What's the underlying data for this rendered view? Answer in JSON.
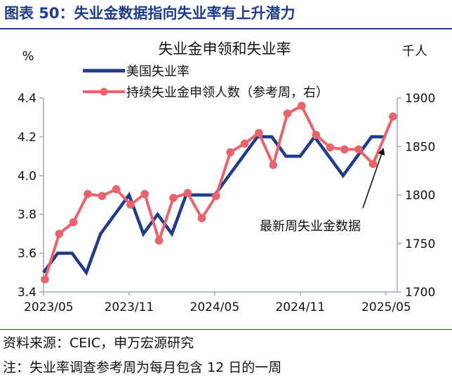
{
  "header": {
    "title": "图表 50：失业金数据指向失业率有上升潜力"
  },
  "footer": {
    "source": "资料来源：CEIC，申万宏源研究",
    "note": "注：失业率调查参考周为每月包含 12 日的一周"
  },
  "colors": {
    "rate_line": "#1f3b8c",
    "claims_line": "#e8636b",
    "accent": "#1f3b8c",
    "axis": "#9aa7c2"
  },
  "chart_data": {
    "type": "line",
    "title": "失业金申领和失业率",
    "left_unit": "%",
    "right_unit": "千人",
    "x_tick_labels": [
      "2023/05",
      "2023/11",
      "2024/05",
      "2024/11",
      "2025/05"
    ],
    "x_tick_indices": [
      0,
      6,
      12,
      18,
      24
    ],
    "left_axis": {
      "min": 3.4,
      "max": 4.4,
      "ticks": [
        "3.4",
        "3.6",
        "3.8",
        "4.0",
        "4.2",
        "4.4"
      ]
    },
    "right_axis": {
      "min": 1700,
      "max": 1900,
      "ticks": [
        "1700",
        "1750",
        "1800",
        "1850",
        "1900"
      ]
    },
    "series": [
      {
        "name": "美国失业率",
        "axis": "left",
        "marker": false,
        "x": [
          0,
          1,
          2,
          3,
          4,
          5,
          6,
          7,
          8,
          9,
          10,
          11,
          12,
          13,
          14,
          15,
          16,
          17,
          18,
          19,
          20,
          21,
          22,
          23,
          24
        ],
        "values": [
          3.5,
          3.6,
          3.6,
          3.5,
          3.7,
          3.8,
          3.9,
          3.7,
          3.8,
          3.7,
          3.9,
          3.9,
          3.9,
          4.0,
          4.1,
          4.2,
          4.2,
          4.1,
          4.1,
          4.2,
          4.1,
          4.0,
          4.1,
          4.2,
          4.2
        ]
      },
      {
        "name": "持续失业金申领人数（参考周，右）",
        "axis": "right",
        "marker": true,
        "x": [
          0.1,
          1.1,
          2.1,
          3.1,
          4.1,
          5.1,
          6.1,
          7.1,
          8.1,
          9.1,
          10.1,
          11.1,
          12.1,
          13.1,
          14.1,
          15.1,
          16.1,
          17.1,
          18.1,
          19.1,
          20.1,
          21.1,
          22.1,
          23.1,
          24.5
        ],
        "values": [
          1713,
          1760,
          1772,
          1801,
          1799,
          1806,
          1790,
          1801,
          1753,
          1797,
          1802,
          1776,
          1799,
          1844,
          1853,
          1864,
          1831,
          1884,
          1892,
          1862,
          1849,
          1847,
          1847,
          1832,
          1881
        ]
      }
    ],
    "annotation": {
      "text": "最新周失业金数据"
    }
  }
}
